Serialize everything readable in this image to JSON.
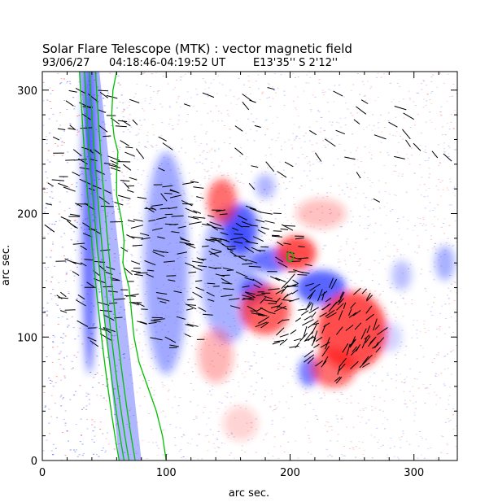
{
  "chart_data": {
    "type": "heatmap",
    "title": "Solar Flare Telescope (MTK) : vector magnetic field",
    "subtitle": {
      "date": "93/06/27",
      "time_range": "04:18:46-04:19:52 UT",
      "position": "E13'35''  S 2'12''"
    },
    "xlabel": "arc sec.",
    "ylabel": "arc sec.",
    "xlim": [
      0,
      335
    ],
    "ylim": [
      0,
      315
    ],
    "xticks": [
      0,
      100,
      200,
      300
    ],
    "yticks": [
      0,
      100,
      200,
      300
    ],
    "colors": {
      "positive": "#ff2020",
      "negative": "#2030ff",
      "contour": "#00c000",
      "vector": "#000000"
    },
    "positive_regions": [
      {
        "x": 145,
        "y": 210,
        "rx": 12,
        "ry": 18,
        "strength": 0.8
      },
      {
        "x": 205,
        "y": 168,
        "rx": 16,
        "ry": 14,
        "strength": 1.0
      },
      {
        "x": 180,
        "y": 122,
        "rx": 20,
        "ry": 20,
        "strength": 0.9
      },
      {
        "x": 250,
        "y": 105,
        "rx": 28,
        "ry": 32,
        "strength": 1.0
      },
      {
        "x": 235,
        "y": 75,
        "rx": 18,
        "ry": 16,
        "strength": 0.8
      },
      {
        "x": 140,
        "y": 85,
        "rx": 14,
        "ry": 22,
        "strength": 0.4
      },
      {
        "x": 225,
        "y": 200,
        "rx": 20,
        "ry": 12,
        "strength": 0.35
      },
      {
        "x": 160,
        "y": 30,
        "rx": 14,
        "ry": 14,
        "strength": 0.25
      }
    ],
    "negative_regions": [
      {
        "x": 38,
        "y": 200,
        "rx": 6,
        "ry": 130,
        "strength": 0.9
      },
      {
        "x": 100,
        "y": 160,
        "rx": 18,
        "ry": 90,
        "strength": 0.55
      },
      {
        "x": 150,
        "y": 150,
        "rx": 22,
        "ry": 55,
        "strength": 0.5
      },
      {
        "x": 160,
        "y": 188,
        "rx": 14,
        "ry": 20,
        "strength": 1.0
      },
      {
        "x": 185,
        "y": 162,
        "rx": 16,
        "ry": 10,
        "strength": 0.9
      },
      {
        "x": 172,
        "y": 138,
        "rx": 12,
        "ry": 10,
        "strength": 0.9
      },
      {
        "x": 225,
        "y": 140,
        "rx": 20,
        "ry": 14,
        "strength": 1.0
      },
      {
        "x": 215,
        "y": 72,
        "rx": 8,
        "ry": 12,
        "strength": 0.85
      },
      {
        "x": 180,
        "y": 222,
        "rx": 8,
        "ry": 10,
        "strength": 0.45
      },
      {
        "x": 290,
        "y": 150,
        "rx": 8,
        "ry": 12,
        "strength": 0.4
      },
      {
        "x": 325,
        "y": 160,
        "rx": 8,
        "ry": 14,
        "strength": 0.5
      },
      {
        "x": 280,
        "y": 100,
        "rx": 10,
        "ry": 12,
        "strength": 0.3
      }
    ],
    "limb_contours": [
      {
        "y_top": 315,
        "x_top": 30,
        "y_bottom": 0,
        "x_bottom": 62
      },
      {
        "y_top": 315,
        "x_top": 34,
        "y_bottom": 0,
        "x_bottom": 66
      },
      {
        "y_top": 315,
        "x_top": 38,
        "y_bottom": 0,
        "x_bottom": 70
      },
      {
        "y_top": 315,
        "x_top": 43,
        "y_bottom": 0,
        "x_bottom": 75
      }
    ],
    "wavy_contour": [
      [
        60,
        315
      ],
      [
        57,
        300
      ],
      [
        56,
        280
      ],
      [
        58,
        262
      ],
      [
        61,
        250
      ],
      [
        60,
        232
      ],
      [
        60,
        215
      ],
      [
        64,
        195
      ],
      [
        66,
        178
      ],
      [
        65,
        160
      ],
      [
        70,
        140
      ],
      [
        72,
        120
      ],
      [
        74,
        100
      ],
      [
        78,
        80
      ],
      [
        85,
        60
      ],
      [
        92,
        40
      ],
      [
        97,
        20
      ],
      [
        100,
        0
      ]
    ],
    "small_contour": {
      "x": 200,
      "y": 165
    }
  }
}
